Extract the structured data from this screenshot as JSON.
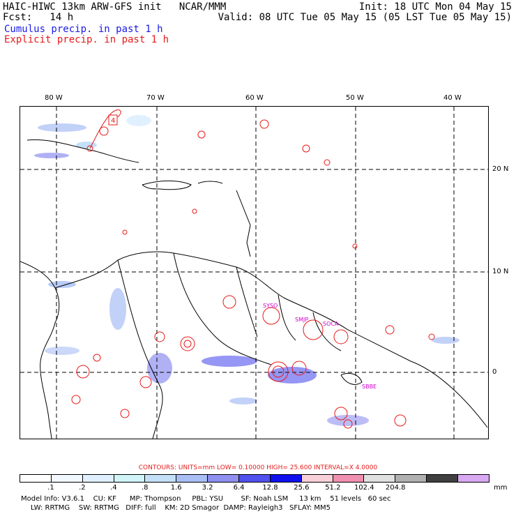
{
  "header": {
    "title": "HAIC-HIWC 13km ARW-GFS init   NCAR/MMM",
    "fcst": "Fcst:   14 h",
    "init": "Init: 18 UTC Mon 04 May 15",
    "valid": "Valid: 08 UTC Tue 05 May 15 (05 LST Tue 05 May 15)"
  },
  "legend": {
    "cumulus": "Cumulus precip. in past 1 h",
    "explicit": "Explicit precip. in past 1 h",
    "cumulus_color": "#1a1ae6",
    "explicit_color": "#e61a1a"
  },
  "map": {
    "lon_labels": [
      "80 W",
      "70 W",
      "60 W",
      "50 W",
      "40 W"
    ],
    "lat_labels": [
      "20 N",
      "10 N",
      "0"
    ],
    "stations": [
      "SYSO",
      "SMJP",
      "SOCA",
      "SBBE"
    ],
    "precip_marker": "4"
  },
  "contours_text": "CONTOURS:  UNITS=mm  LOW= 0.10000      HIGH=  25.600      INTERVAL=X  4.0000",
  "colorbar": {
    "colors": [
      "#ffffff",
      "#f2f8ff",
      "#e0f0ff",
      "#d0f4f8",
      "#c4e0f8",
      "#a8bef5",
      "#8f8ff0",
      "#5050ee",
      "#1010ee",
      "#f8d0d8",
      "#f090b0",
      "#e0e0e0",
      "#b0b0b0",
      "#404040",
      "#d8a8f0"
    ],
    "ticks": [
      ".1",
      ".2",
      ".4",
      ".8",
      "1.6",
      "3.2",
      "6.4",
      "12.8",
      "25.6",
      "51.2",
      "102.4",
      "204.8"
    ],
    "unit": "mm"
  },
  "model_info": {
    "line1": "Model Info: V3.6.1    CU: KF      MP: Thompson     PBL: YSU        SF: Noah LSM     13 km    51 levels   60 sec",
    "line2": "LW: RRTMG    SW: RRTMG   DIFF: full    KM: 2D Smagor  DAMP: Rayleigh3   SFLAY: MM5"
  }
}
